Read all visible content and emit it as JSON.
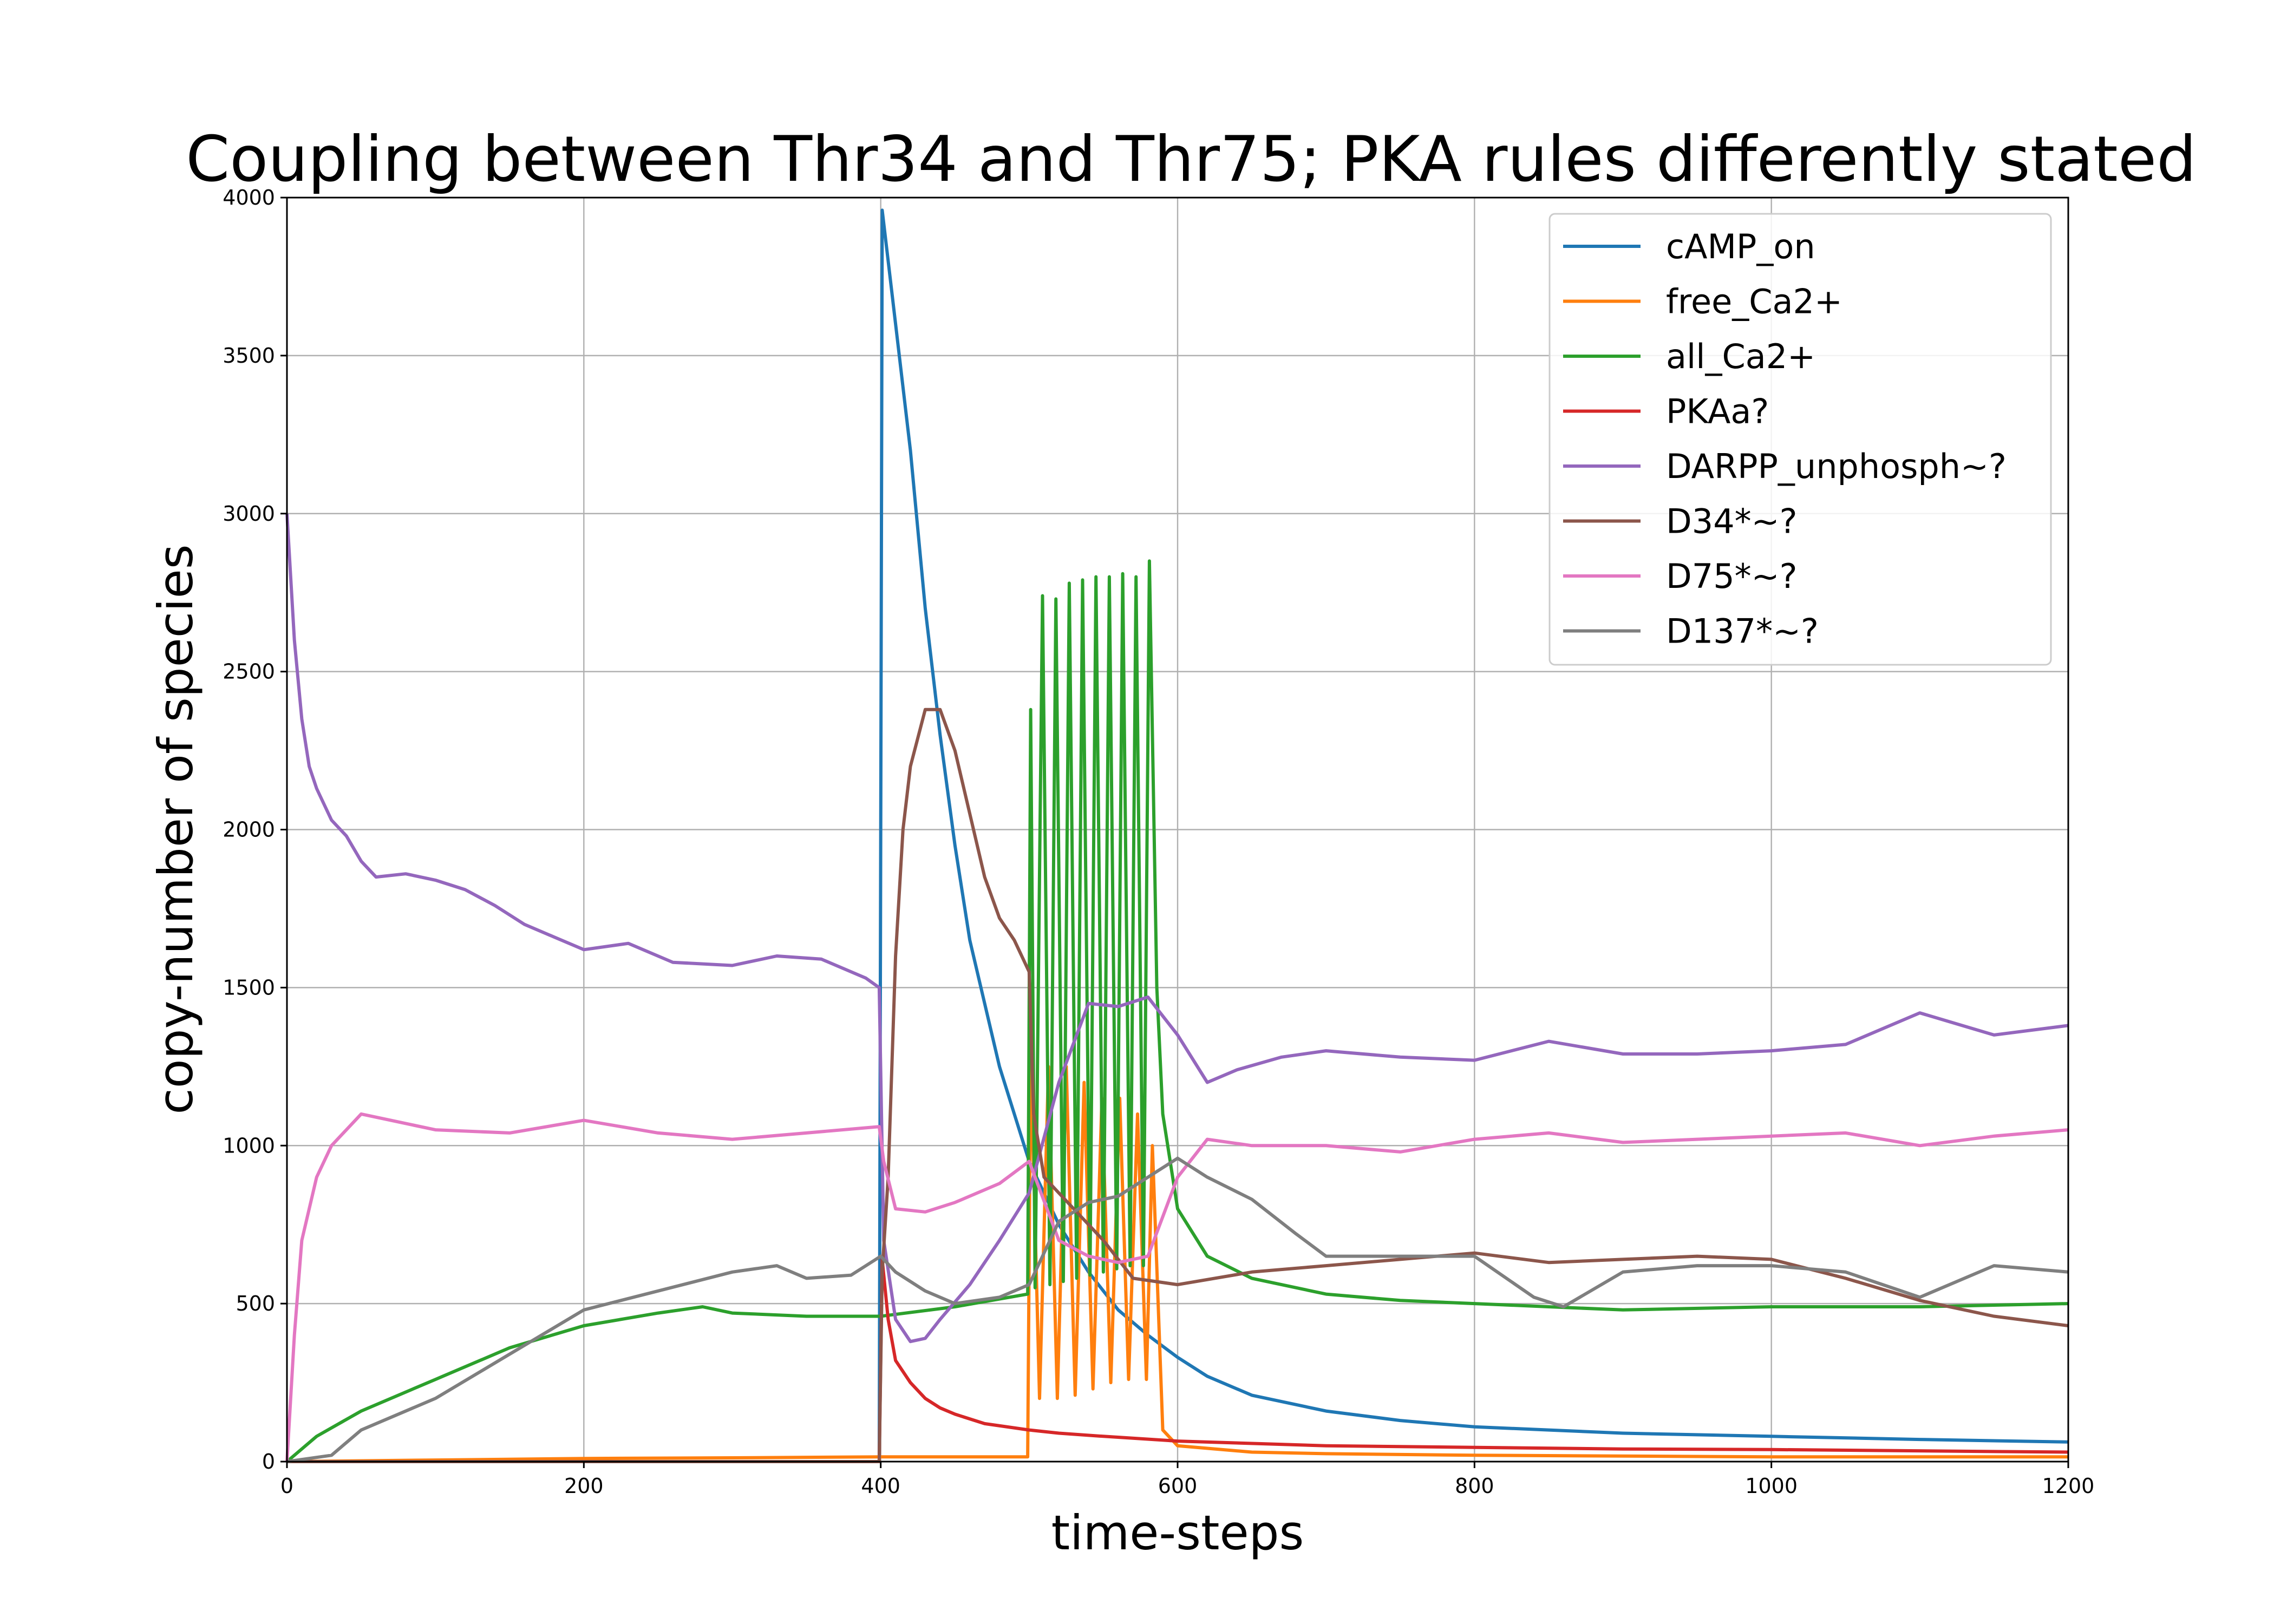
{
  "chart_data": {
    "type": "line",
    "title": "Coupling between Thr34 and Thr75; PKA rules differently stated",
    "xlabel": "time-steps",
    "ylabel": "copy-number of species",
    "xlim": [
      0,
      1200
    ],
    "ylim": [
      0,
      4000
    ],
    "xticks": [
      0,
      200,
      400,
      600,
      800,
      1000,
      1200
    ],
    "yticks": [
      0,
      500,
      1000,
      1500,
      2000,
      2500,
      3000,
      3500,
      4000
    ],
    "grid": true,
    "legend_position": "top-right",
    "series": [
      {
        "name": "cAMP_on",
        "color": "#1f77b4",
        "points": [
          [
            0,
            0
          ],
          [
            399,
            0
          ],
          [
            401,
            3960
          ],
          [
            410,
            3600
          ],
          [
            420,
            3200
          ],
          [
            430,
            2700
          ],
          [
            440,
            2300
          ],
          [
            450,
            1950
          ],
          [
            460,
            1650
          ],
          [
            470,
            1450
          ],
          [
            480,
            1250
          ],
          [
            490,
            1100
          ],
          [
            500,
            950
          ],
          [
            520,
            750
          ],
          [
            540,
            600
          ],
          [
            560,
            480
          ],
          [
            580,
            400
          ],
          [
            600,
            330
          ],
          [
            620,
            270
          ],
          [
            650,
            210
          ],
          [
            700,
            160
          ],
          [
            750,
            130
          ],
          [
            800,
            110
          ],
          [
            850,
            100
          ],
          [
            900,
            90
          ],
          [
            1000,
            80
          ],
          [
            1100,
            70
          ],
          [
            1200,
            62
          ]
        ]
      },
      {
        "name": "free_Ca2+",
        "color": "#ff7f0e",
        "points": [
          [
            0,
            0
          ],
          [
            100,
            5
          ],
          [
            200,
            10
          ],
          [
            300,
            12
          ],
          [
            400,
            15
          ],
          [
            499,
            15
          ],
          [
            501,
            1300
          ],
          [
            507,
            200
          ],
          [
            513,
            1250
          ],
          [
            519,
            200
          ],
          [
            525,
            1250
          ],
          [
            531,
            210
          ],
          [
            537,
            1200
          ],
          [
            543,
            230
          ],
          [
            549,
            1150
          ],
          [
            555,
            250
          ],
          [
            561,
            1150
          ],
          [
            567,
            260
          ],
          [
            573,
            1100
          ],
          [
            579,
            260
          ],
          [
            583,
            1000
          ],
          [
            590,
            100
          ],
          [
            600,
            50
          ],
          [
            650,
            30
          ],
          [
            700,
            25
          ],
          [
            800,
            20
          ],
          [
            1000,
            15
          ],
          [
            1200,
            15
          ]
        ]
      },
      {
        "name": "all_Ca2+",
        "color": "#2ca02c",
        "points": [
          [
            0,
            0
          ],
          [
            20,
            80
          ],
          [
            50,
            160
          ],
          [
            100,
            260
          ],
          [
            150,
            360
          ],
          [
            200,
            430
          ],
          [
            250,
            470
          ],
          [
            280,
            490
          ],
          [
            300,
            470
          ],
          [
            350,
            460
          ],
          [
            400,
            460
          ],
          [
            450,
            490
          ],
          [
            499,
            530
          ],
          [
            501,
            2380
          ],
          [
            504,
            550
          ],
          [
            509,
            2740
          ],
          [
            514,
            560
          ],
          [
            518,
            2730
          ],
          [
            523,
            570
          ],
          [
            527,
            2780
          ],
          [
            532,
            580
          ],
          [
            536,
            2790
          ],
          [
            541,
            590
          ],
          [
            545,
            2800
          ],
          [
            550,
            600
          ],
          [
            554,
            2800
          ],
          [
            559,
            610
          ],
          [
            563,
            2810
          ],
          [
            568,
            620
          ],
          [
            572,
            2800
          ],
          [
            577,
            620
          ],
          [
            581,
            2850
          ],
          [
            586,
            1500
          ],
          [
            590,
            1100
          ],
          [
            600,
            800
          ],
          [
            620,
            650
          ],
          [
            650,
            580
          ],
          [
            700,
            530
          ],
          [
            750,
            510
          ],
          [
            800,
            500
          ],
          [
            850,
            490
          ],
          [
            900,
            480
          ],
          [
            1000,
            490
          ],
          [
            1100,
            490
          ],
          [
            1200,
            500
          ]
        ]
      },
      {
        "name": "PKAa?",
        "color": "#d62728",
        "points": [
          [
            0,
            0
          ],
          [
            399,
            0
          ],
          [
            401,
            640
          ],
          [
            405,
            450
          ],
          [
            410,
            320
          ],
          [
            420,
            250
          ],
          [
            430,
            200
          ],
          [
            440,
            170
          ],
          [
            450,
            150
          ],
          [
            470,
            120
          ],
          [
            500,
            100
          ],
          [
            520,
            90
          ],
          [
            550,
            80
          ],
          [
            600,
            65
          ],
          [
            700,
            50
          ],
          [
            800,
            45
          ],
          [
            900,
            40
          ],
          [
            1000,
            38
          ],
          [
            1200,
            30
          ]
        ]
      },
      {
        "name": "DARPP_unphosph~?",
        "color": "#9467bd",
        "points": [
          [
            0,
            3000
          ],
          [
            5,
            2600
          ],
          [
            10,
            2350
          ],
          [
            15,
            2200
          ],
          [
            20,
            2130
          ],
          [
            30,
            2030
          ],
          [
            40,
            1980
          ],
          [
            50,
            1900
          ],
          [
            60,
            1850
          ],
          [
            80,
            1860
          ],
          [
            100,
            1840
          ],
          [
            120,
            1810
          ],
          [
            140,
            1760
          ],
          [
            160,
            1700
          ],
          [
            180,
            1660
          ],
          [
            200,
            1620
          ],
          [
            230,
            1640
          ],
          [
            260,
            1580
          ],
          [
            300,
            1570
          ],
          [
            330,
            1600
          ],
          [
            360,
            1590
          ],
          [
            390,
            1530
          ],
          [
            399,
            1500
          ],
          [
            402,
            700
          ],
          [
            410,
            450
          ],
          [
            420,
            380
          ],
          [
            430,
            390
          ],
          [
            440,
            450
          ],
          [
            460,
            560
          ],
          [
            480,
            700
          ],
          [
            500,
            850
          ],
          [
            520,
            1200
          ],
          [
            540,
            1450
          ],
          [
            560,
            1440
          ],
          [
            580,
            1470
          ],
          [
            600,
            1350
          ],
          [
            620,
            1200
          ],
          [
            640,
            1240
          ],
          [
            670,
            1280
          ],
          [
            700,
            1300
          ],
          [
            750,
            1280
          ],
          [
            800,
            1270
          ],
          [
            850,
            1330
          ],
          [
            900,
            1290
          ],
          [
            950,
            1290
          ],
          [
            1000,
            1300
          ],
          [
            1050,
            1320
          ],
          [
            1100,
            1420
          ],
          [
            1150,
            1350
          ],
          [
            1200,
            1380
          ]
        ]
      },
      {
        "name": "D34*~?",
        "color": "#8c564b",
        "points": [
          [
            0,
            0
          ],
          [
            399,
            0
          ],
          [
            401,
            600
          ],
          [
            405,
            900
          ],
          [
            410,
            1600
          ],
          [
            415,
            2000
          ],
          [
            420,
            2200
          ],
          [
            430,
            2380
          ],
          [
            440,
            2380
          ],
          [
            450,
            2250
          ],
          [
            460,
            2050
          ],
          [
            470,
            1850
          ],
          [
            480,
            1720
          ],
          [
            490,
            1650
          ],
          [
            500,
            1550
          ],
          [
            503,
            1100
          ],
          [
            510,
            900
          ],
          [
            530,
            800
          ],
          [
            550,
            700
          ],
          [
            570,
            580
          ],
          [
            600,
            560
          ],
          [
            650,
            600
          ],
          [
            700,
            620
          ],
          [
            750,
            640
          ],
          [
            800,
            660
          ],
          [
            850,
            630
          ],
          [
            900,
            640
          ],
          [
            950,
            650
          ],
          [
            1000,
            640
          ],
          [
            1050,
            580
          ],
          [
            1100,
            510
          ],
          [
            1150,
            460
          ],
          [
            1200,
            430
          ]
        ]
      },
      {
        "name": "D75*~?",
        "color": "#e377c2",
        "points": [
          [
            0,
            0
          ],
          [
            5,
            400
          ],
          [
            10,
            700
          ],
          [
            20,
            900
          ],
          [
            30,
            1000
          ],
          [
            50,
            1100
          ],
          [
            70,
            1080
          ],
          [
            100,
            1050
          ],
          [
            150,
            1040
          ],
          [
            200,
            1080
          ],
          [
            250,
            1040
          ],
          [
            300,
            1020
          ],
          [
            350,
            1040
          ],
          [
            399,
            1060
          ],
          [
            402,
            950
          ],
          [
            410,
            800
          ],
          [
            430,
            790
          ],
          [
            450,
            820
          ],
          [
            480,
            880
          ],
          [
            500,
            950
          ],
          [
            520,
            700
          ],
          [
            540,
            650
          ],
          [
            560,
            630
          ],
          [
            580,
            650
          ],
          [
            600,
            900
          ],
          [
            620,
            1020
          ],
          [
            650,
            1000
          ],
          [
            700,
            1000
          ],
          [
            750,
            980
          ],
          [
            800,
            1020
          ],
          [
            850,
            1040
          ],
          [
            900,
            1010
          ],
          [
            950,
            1020
          ],
          [
            1000,
            1030
          ],
          [
            1050,
            1040
          ],
          [
            1100,
            1000
          ],
          [
            1150,
            1030
          ],
          [
            1200,
            1050
          ]
        ]
      },
      {
        "name": "D137*~?",
        "color": "#7f7f7f",
        "points": [
          [
            0,
            0
          ],
          [
            30,
            20
          ],
          [
            50,
            100
          ],
          [
            100,
            200
          ],
          [
            150,
            340
          ],
          [
            200,
            480
          ],
          [
            250,
            540
          ],
          [
            300,
            600
          ],
          [
            330,
            620
          ],
          [
            350,
            580
          ],
          [
            380,
            590
          ],
          [
            400,
            650
          ],
          [
            410,
            600
          ],
          [
            430,
            540
          ],
          [
            450,
            500
          ],
          [
            480,
            520
          ],
          [
            500,
            560
          ],
          [
            520,
            760
          ],
          [
            540,
            820
          ],
          [
            560,
            840
          ],
          [
            580,
            900
          ],
          [
            600,
            960
          ],
          [
            620,
            900
          ],
          [
            650,
            830
          ],
          [
            680,
            720
          ],
          [
            700,
            650
          ],
          [
            750,
            650
          ],
          [
            800,
            650
          ],
          [
            840,
            520
          ],
          [
            860,
            490
          ],
          [
            900,
            600
          ],
          [
            950,
            620
          ],
          [
            1000,
            620
          ],
          [
            1050,
            600
          ],
          [
            1100,
            520
          ],
          [
            1150,
            620
          ],
          [
            1200,
            600
          ]
        ]
      }
    ]
  }
}
